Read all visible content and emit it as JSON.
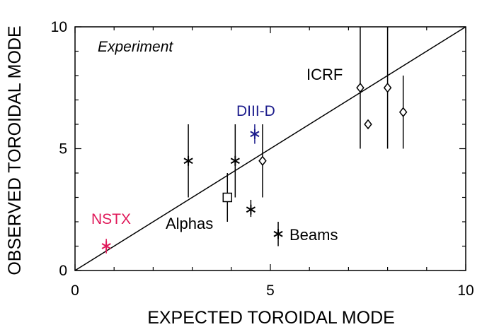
{
  "chart_data": {
    "type": "scatter",
    "title": "",
    "xlabel": "EXPECTED TOROIDAL MODE",
    "ylabel": "OBSERVED TOROIDAL MODE",
    "xlim": [
      0,
      10
    ],
    "ylim": [
      0,
      10
    ],
    "xticks": [
      "0",
      "5",
      "10"
    ],
    "yticks": [
      "0",
      "5",
      "10"
    ],
    "grid": false,
    "reference_line": {
      "x": [
        0,
        10
      ],
      "y": [
        0,
        10
      ],
      "label": "y = x"
    },
    "annotations": {
      "experiment": "Experiment",
      "icrf": "ICRF",
      "diiid": "DIII-D",
      "nstx": "NSTX",
      "alphas": "Alphas",
      "beams": "Beams"
    },
    "colors": {
      "nstx": "#e0195a",
      "diiid": "#1c1c8c",
      "default": "#000000"
    },
    "series": [
      {
        "name": "NSTX",
        "marker": "asterisk",
        "color": "#e0195a",
        "points": [
          {
            "x": 0.8,
            "y": 1.0,
            "ylo": 0.7,
            "yhi": 1.3
          }
        ]
      },
      {
        "name": "DIII-D",
        "marker": "asterisk",
        "color": "#1c1c8c",
        "points": [
          {
            "x": 4.6,
            "y": 5.6,
            "ylo": 5.2,
            "yhi": 6.0
          }
        ]
      },
      {
        "name": "Alphas",
        "marker": "asterisk",
        "color": "#000000",
        "points": [
          {
            "x": 2.9,
            "y": 4.5,
            "ylo": 3.0,
            "yhi": 6.0
          },
          {
            "x": 4.1,
            "y": 4.5,
            "ylo": 3.0,
            "yhi": 6.0
          },
          {
            "x": 4.5,
            "y": 2.5,
            "ylo": 2.2,
            "yhi": 2.9
          }
        ]
      },
      {
        "name": "Beams",
        "marker": "asterisk",
        "color": "#000000",
        "points": [
          {
            "x": 5.2,
            "y": 1.5,
            "ylo": 1.0,
            "yhi": 2.0
          }
        ]
      },
      {
        "name": "Square",
        "marker": "square",
        "color": "#000000",
        "points": [
          {
            "x": 3.9,
            "y": 3.0,
            "ylo": 2.0,
            "yhi": 4.0
          }
        ]
      },
      {
        "name": "ICRF",
        "marker": "diamond",
        "color": "#000000",
        "points": [
          {
            "x": 4.8,
            "y": 4.5,
            "ylo": 3.0,
            "yhi": 6.0
          },
          {
            "x": 7.3,
            "y": 7.5,
            "ylo": 5.0,
            "yhi": 10.0
          },
          {
            "x": 7.5,
            "y": 6.0
          },
          {
            "x": 8.0,
            "y": 7.5,
            "ylo": 5.0,
            "yhi": 10.0
          },
          {
            "x": 8.4,
            "y": 6.5,
            "ylo": 5.0,
            "yhi": 8.0
          }
        ]
      }
    ]
  }
}
